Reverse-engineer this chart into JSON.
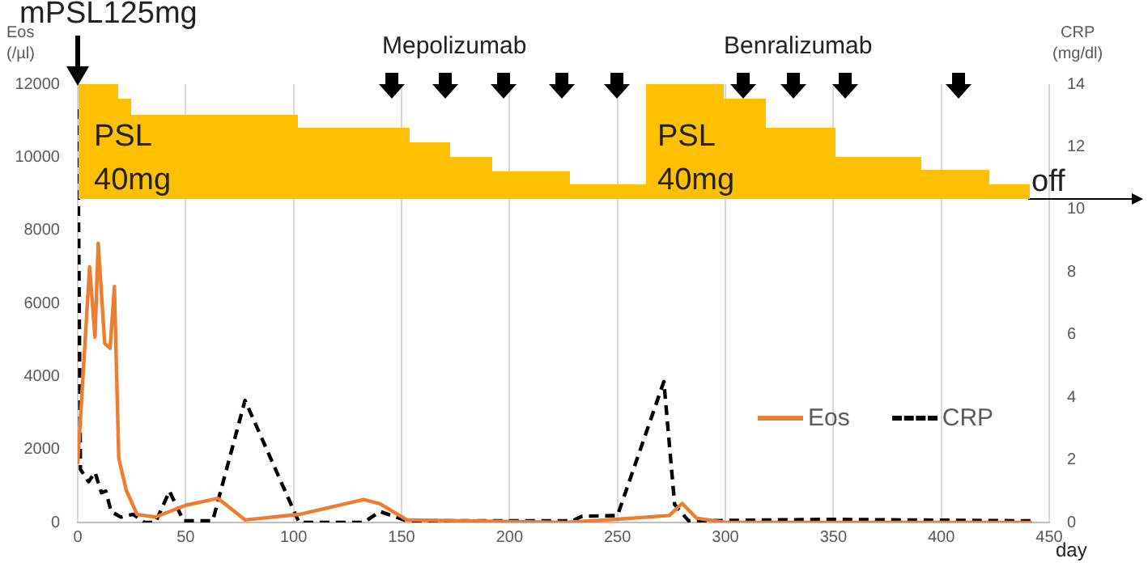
{
  "chart_data": {
    "type": "line",
    "xlabel": "day",
    "ylabel": "Eos\n(/µl)",
    "y2label": "CRP\n(mg/dl)",
    "x": [
      0,
      5.5,
      8,
      9.5,
      12.5,
      15,
      17,
      19,
      22.5,
      27.5,
      36,
      50,
      65,
      77.5,
      102.5,
      132.5,
      140,
      152.5,
      226,
      250,
      274,
      280,
      286.6,
      300,
      442
    ],
    "series": [
      {
        "name": "Eos",
        "color": "#ed7d31",
        "line_style": "solid",
        "values": [
          1600,
          7000,
          5070,
          7640,
          4900,
          4770,
          6460,
          1760,
          880,
          220,
          150,
          470,
          660,
          70,
          220,
          630,
          510,
          70,
          0,
          90,
          190,
          520,
          120,
          0,
          0
        ]
      },
      {
        "name": "CRP",
        "color": "#000000",
        "axis": "y2",
        "line_style": "dashed",
        "x": [
          0,
          1.25,
          5,
          8,
          11,
          13,
          15.5,
          20,
          25.7,
          31,
          36,
          42.5,
          49,
          62.5,
          77.5,
          102.5,
          132.5,
          140,
          152.5,
          229,
          233.7,
          250,
          271.5,
          276.5,
          283,
          347,
          442
        ],
        "values": [
          13.2,
          1.7,
          1.3,
          1.6,
          0.95,
          1.0,
          0.35,
          0.17,
          0.26,
          0,
          0,
          1.0,
          0.05,
          0.05,
          3.9,
          0,
          0,
          0.35,
          0.05,
          0.05,
          0.2,
          0.22,
          4.5,
          0.57,
          0.05,
          0.1,
          0.05
        ]
      }
    ],
    "xlim": [
      0,
      450
    ],
    "xticks": [
      0,
      50,
      100,
      150,
      200,
      250,
      300,
      350,
      400,
      450
    ],
    "ylim": [
      0,
      12000
    ],
    "yticks": [
      0,
      2000,
      4000,
      6000,
      8000,
      10000,
      12000
    ],
    "y2lim": [
      0,
      14
    ],
    "y2ticks": [
      0,
      2,
      4,
      6,
      8,
      10,
      12,
      14
    ],
    "grid": "x",
    "legend": "bottom right",
    "annotations": [
      "mPSL125mg",
      "Mepolizumab",
      "Benralizumab",
      "PSL\n40mg",
      "PSL\n40mg",
      "off"
    ]
  }
}
